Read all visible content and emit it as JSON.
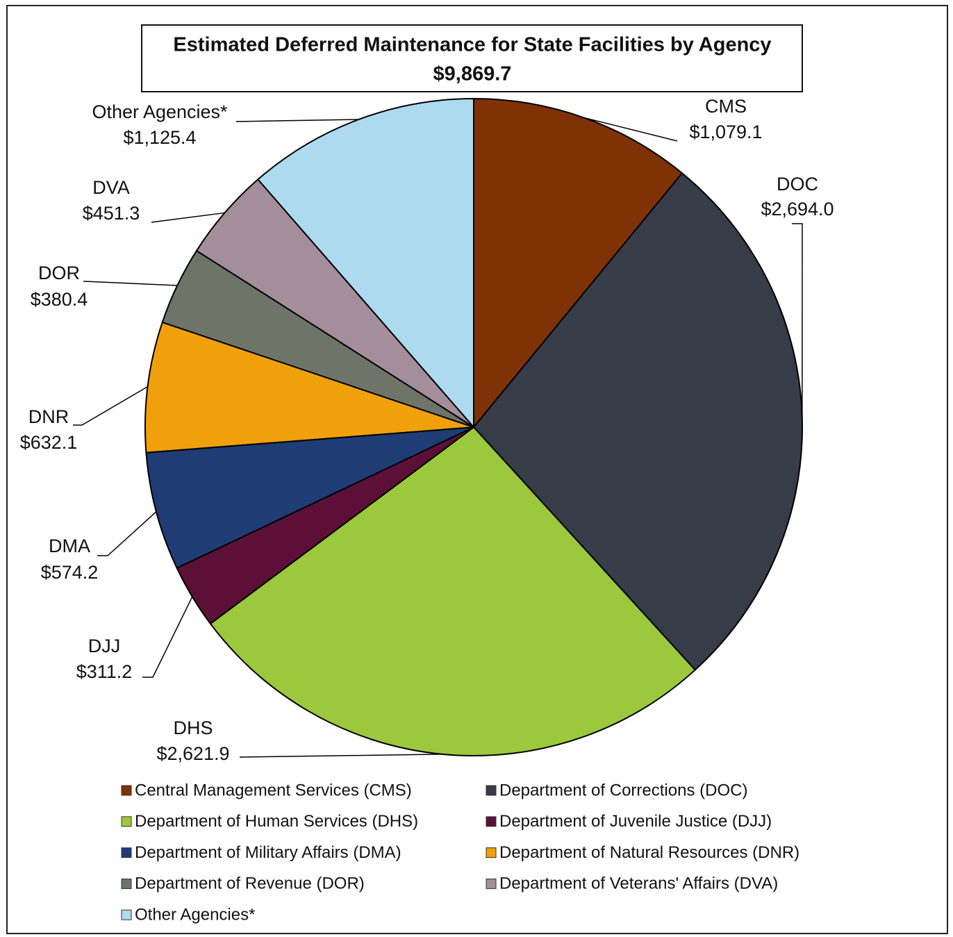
{
  "chart_data": {
    "type": "pie",
    "title": "Estimated Deferred Maintenance for State Facilities by Agency",
    "subtitle": "$9,869.7",
    "categories": [
      "Central Management Services (CMS)",
      "Department of Corrections (DOC)",
      "Department of Human Services (DHS)",
      "Department of Juvenile Justice (DJJ)",
      "Department of Military Affairs (DMA)",
      "Department of Natural Resources (DNR)",
      "Department of Revenue (DOR)",
      "Department of Veterans' Affairs (DVA)",
      "Other Agencies*"
    ],
    "labels": [
      "CMS",
      "DOC",
      "DHS",
      "DJJ",
      "DMA",
      "DNR",
      "DOR",
      "DVA",
      "Other Agencies*"
    ],
    "values": [
      1079.1,
      2694.0,
      2621.9,
      311.2,
      574.2,
      632.1,
      380.4,
      451.3,
      1125.4
    ],
    "value_labels": [
      "$1,079.1",
      "$2,694.0",
      "$2,621.9",
      "$311.2",
      "$574.2",
      "$632.1",
      "$380.4",
      "$451.3",
      "$1,125.4"
    ],
    "colors": [
      "#7f3205",
      "#363d48",
      "#9bc83c",
      "#5c1037",
      "#1f3d74",
      "#f0a00a",
      "#6e7568",
      "#a48e9c",
      "#addaef"
    ],
    "legend": "bottom"
  }
}
